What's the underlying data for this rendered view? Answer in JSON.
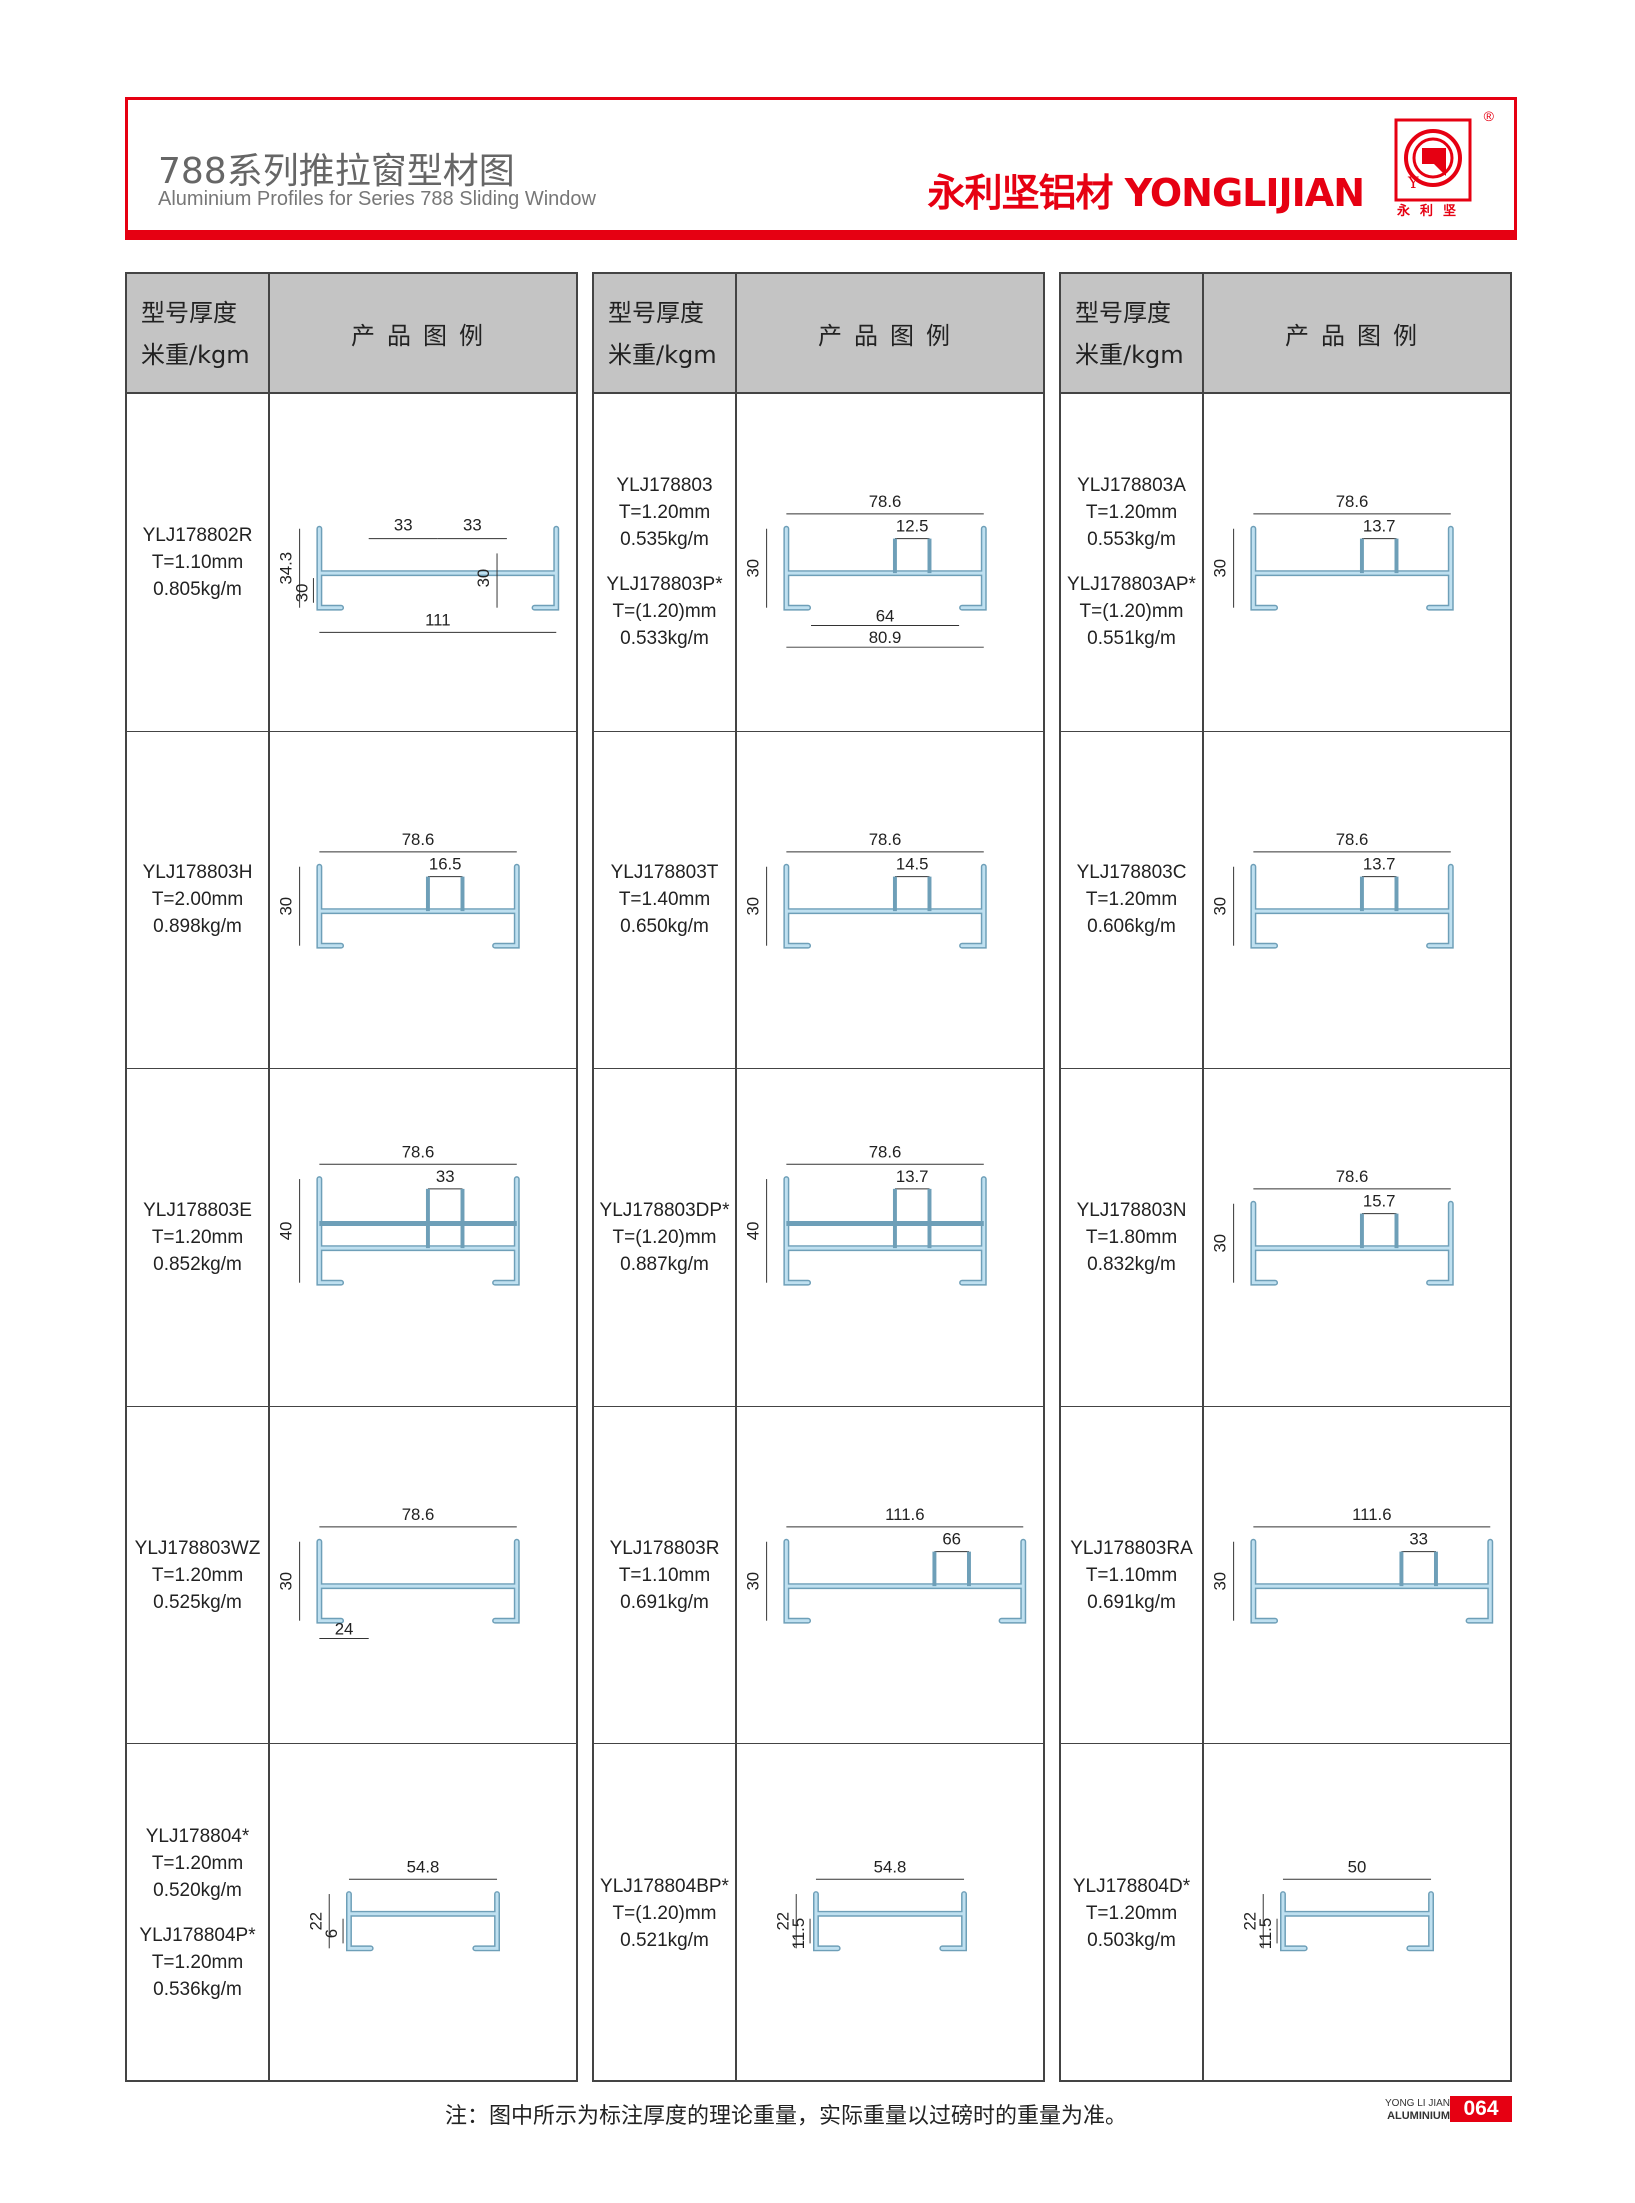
{
  "header": {
    "title_cn": "788系列推拉窗型材图",
    "title_en": "Aluminium Profiles for Series 788 Sliding Window",
    "brand": "永利坚铝材 YONGLIJIAN",
    "logo_text": "永利坚",
    "registered": "®",
    "accent_color": "#e60012"
  },
  "table_header": {
    "col1_line1": "型号厚度",
    "col1_line2": "米重/kgm",
    "col2": "产品图例"
  },
  "columns": [
    [
      {
        "labels": [
          [
            "YLJ178802R",
            "T=1.10mm",
            "0.805kg/m"
          ]
        ],
        "dims": {
          "top": [
            "33",
            "33"
          ],
          "width": "111",
          "height": "34.3",
          "inner": "30"
        }
      },
      {
        "labels": [
          [
            "YLJ178803H",
            "T=2.00mm",
            "0.898kg/m"
          ]
        ],
        "dims": {
          "width": "78.6",
          "sub": "16.5",
          "height": "30"
        }
      },
      {
        "labels": [
          [
            "YLJ178803E",
            "T=1.20mm",
            "0.852kg/m"
          ]
        ],
        "dims": {
          "width": "78.6",
          "sub": "33",
          "height": "40"
        }
      },
      {
        "labels": [
          [
            "YLJ178803WZ",
            "T=1.20mm",
            "0.525kg/m"
          ]
        ],
        "dims": {
          "width": "78.6",
          "height": "30",
          "bottom": [
            "24"
          ]
        }
      },
      {
        "labels": [
          [
            "YLJ178804*",
            "T=1.20mm",
            "0.520kg/m"
          ],
          [
            "YLJ178804P*",
            "T=1.20mm",
            "0.536kg/m"
          ]
        ],
        "dims": {
          "width": "54.8",
          "height": "22",
          "inner": "6"
        }
      }
    ],
    [
      {
        "labels": [
          [
            "YLJ178803",
            "T=1.20mm",
            "0.535kg/m"
          ],
          [
            "YLJ178803P*",
            "T=(1.20)mm",
            "0.533kg/m"
          ]
        ],
        "dims": {
          "width": "78.6",
          "sub": "12.5",
          "height": "30",
          "bottom": [
            "64",
            "80.9"
          ]
        }
      },
      {
        "labels": [
          [
            "YLJ178803T",
            "T=1.40mm",
            "0.650kg/m"
          ]
        ],
        "dims": {
          "width": "78.6",
          "sub": "14.5",
          "height": "30"
        }
      },
      {
        "labels": [
          [
            "YLJ178803DP*",
            "T=(1.20)mm",
            "0.887kg/m"
          ]
        ],
        "dims": {
          "width": "78.6",
          "sub": "13.7",
          "height": "40"
        }
      },
      {
        "labels": [
          [
            "YLJ178803R",
            "T=1.10mm",
            "0.691kg/m"
          ]
        ],
        "dims": {
          "width": "111.6",
          "sub": "66",
          "height": "30"
        }
      },
      {
        "labels": [
          [
            "YLJ178804BP*",
            "T=(1.20)mm",
            "0.521kg/m"
          ]
        ],
        "dims": {
          "width": "54.8",
          "height": "22",
          "inner": "11.5"
        }
      }
    ],
    [
      {
        "labels": [
          [
            "YLJ178803A",
            "T=1.20mm",
            "0.553kg/m"
          ],
          [
            "YLJ178803AP*",
            "T=(1.20)mm",
            "0.551kg/m"
          ]
        ],
        "dims": {
          "width": "78.6",
          "sub": "13.7",
          "height": "30"
        }
      },
      {
        "labels": [
          [
            "YLJ178803C",
            "T=1.20mm",
            "0.606kg/m"
          ]
        ],
        "dims": {
          "width": "78.6",
          "sub": "13.7",
          "height": "30"
        }
      },
      {
        "labels": [
          [
            "YLJ178803N",
            "T=1.80mm",
            "0.832kg/m"
          ]
        ],
        "dims": {
          "width": "78.6",
          "sub": "15.7",
          "height": "30"
        }
      },
      {
        "labels": [
          [
            "YLJ178803RA",
            "T=1.10mm",
            "0.691kg/m"
          ]
        ],
        "dims": {
          "width": "111.6",
          "sub": "33",
          "height": "30"
        }
      },
      {
        "labels": [
          [
            "YLJ178804D*",
            "T=1.20mm",
            "0.503kg/m"
          ]
        ],
        "dims": {
          "width": "50",
          "height": "22",
          "inner": "11.5"
        }
      }
    ]
  ],
  "footer": {
    "note": "注：图中所示为标注厚度的理论重量，实际重量以过磅时的重量为准。",
    "brand_line1": "YONG LI JIAN",
    "brand_line2": "ALUMINIUM",
    "page_number": "064"
  }
}
